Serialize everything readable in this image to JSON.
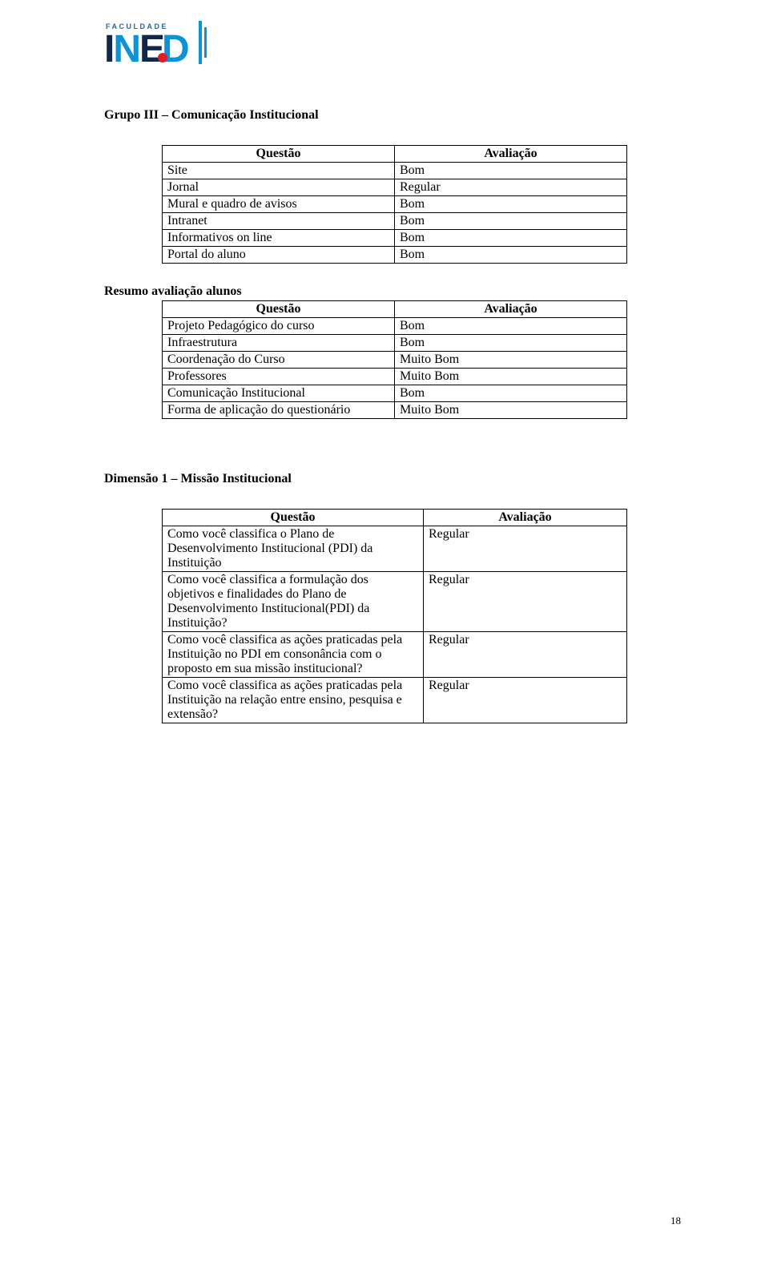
{
  "logo": {
    "top_label": "FACULDADE",
    "letters": [
      "I",
      "N",
      "E",
      "D"
    ],
    "colors": {
      "navy": "#12284b",
      "blue": "#0a94d6",
      "red": "#e02020"
    }
  },
  "section_g3": {
    "title": "Grupo III – Comunicação Institucional",
    "table": {
      "headers": [
        "Questão",
        "Avaliação"
      ],
      "rows": [
        [
          "Site",
          "Bom"
        ],
        [
          "Jornal",
          "Regular"
        ],
        [
          "Mural e quadro de avisos",
          "Bom"
        ],
        [
          "Intranet",
          "Bom"
        ],
        [
          "Informativos on line",
          "Bom"
        ],
        [
          "Portal do aluno",
          "Bom"
        ]
      ]
    }
  },
  "section_resumo": {
    "title": "Resumo avaliação alunos",
    "table": {
      "headers": [
        "Questão",
        "Avaliação"
      ],
      "rows": [
        [
          "Projeto Pedagógico do curso",
          "Bom"
        ],
        [
          "Infraestrutura",
          "Bom"
        ],
        [
          "Coordenação do Curso",
          "Muito Bom"
        ],
        [
          "Professores",
          "Muito Bom"
        ],
        [
          "Comunicação Institucional",
          "Bom"
        ],
        [
          "Forma de aplicação do questionário",
          "Muito Bom"
        ]
      ]
    }
  },
  "section_dim1": {
    "title": "Dimensão 1 – Missão Institucional",
    "table": {
      "headers": [
        "Questão",
        "Avaliação"
      ],
      "rows": [
        [
          "Como você classifica o Plano de Desenvolvimento Institucional (PDI) da Instituição",
          "Regular"
        ],
        [
          "Como você classifica a formulação dos objetivos e finalidades do Plano de Desenvolvimento Institucional(PDI) da Instituição?",
          "Regular"
        ],
        [
          "Como você classifica as ações praticadas pela Instituição no PDI em consonância com o proposto em sua missão institucional?",
          "Regular"
        ],
        [
          "Como você classifica as ações praticadas pela Instituição na relação entre ensino, pesquisa e extensão?",
          "Regular"
        ]
      ]
    }
  },
  "page_number": "18"
}
